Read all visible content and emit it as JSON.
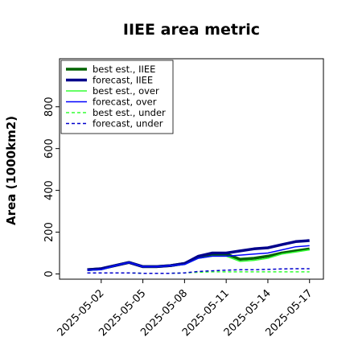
{
  "chart_data": {
    "type": "line",
    "title": "IIEE area metric",
    "xlabel": "",
    "ylabel": "Area (1000km2)",
    "x_tick_labels": [
      "2025-05-02",
      "2025-05-05",
      "2025-05-08",
      "2025-05-11",
      "2025-05-14",
      "2025-05-17"
    ],
    "highlighted_tick": "2025-05-08",
    "highlight_color": "#228b22",
    "x": [
      "2025-05-01",
      "2025-05-02",
      "2025-05-03",
      "2025-05-04",
      "2025-05-05",
      "2025-05-06",
      "2025-05-07",
      "2025-05-08",
      "2025-05-09",
      "2025-05-10",
      "2025-05-11",
      "2025-05-12",
      "2025-05-13",
      "2025-05-14",
      "2025-05-15",
      "2025-05-16",
      "2025-05-17"
    ],
    "xlim": [
      "2025-04-29",
      "2025-05-18"
    ],
    "ylim": [
      -25,
      1030
    ],
    "y_ticks": [
      0,
      200,
      400,
      600,
      800
    ],
    "grid": false,
    "legend_placement": "upper-left",
    "series": [
      {
        "name": "best est., IIEE",
        "color": "#006400",
        "line_width": 3.5,
        "dash": "solid",
        "values": [
          20,
          25,
          40,
          55,
          35,
          35,
          40,
          50,
          80,
          95,
          95,
          70,
          75,
          85,
          100,
          110,
          120
        ]
      },
      {
        "name": "forecast, IIEE",
        "color": "#00008b",
        "line_width": 3.5,
        "dash": "solid",
        "values": [
          20,
          25,
          40,
          55,
          35,
          35,
          40,
          50,
          85,
          100,
          100,
          110,
          120,
          125,
          140,
          155,
          160
        ]
      },
      {
        "name": "best est., over",
        "color": "#33ff33",
        "line_width": 1.5,
        "dash": "solid",
        "values": [
          18,
          20,
          40,
          55,
          35,
          35,
          40,
          45,
          75,
          85,
          85,
          60,
          65,
          75,
          95,
          105,
          115
        ]
      },
      {
        "name": "forecast, over",
        "color": "#0000ff",
        "line_width": 1.5,
        "dash": "solid",
        "values": [
          18,
          20,
          40,
          55,
          35,
          35,
          40,
          45,
          75,
          85,
          85,
          90,
          95,
          100,
          115,
          130,
          135
        ]
      },
      {
        "name": "best est., under",
        "color": "#33ff33",
        "line_width": 1.5,
        "dash": "dashed",
        "values": [
          5,
          5,
          5,
          5,
          3,
          3,
          3,
          5,
          8,
          10,
          10,
          10,
          10,
          10,
          10,
          10,
          10
        ]
      },
      {
        "name": "forecast, under",
        "color": "#0000cd",
        "line_width": 1.5,
        "dash": "dashed",
        "values": [
          5,
          5,
          5,
          5,
          3,
          3,
          3,
          5,
          12,
          15,
          18,
          20,
          20,
          22,
          24,
          25,
          25
        ]
      }
    ]
  }
}
